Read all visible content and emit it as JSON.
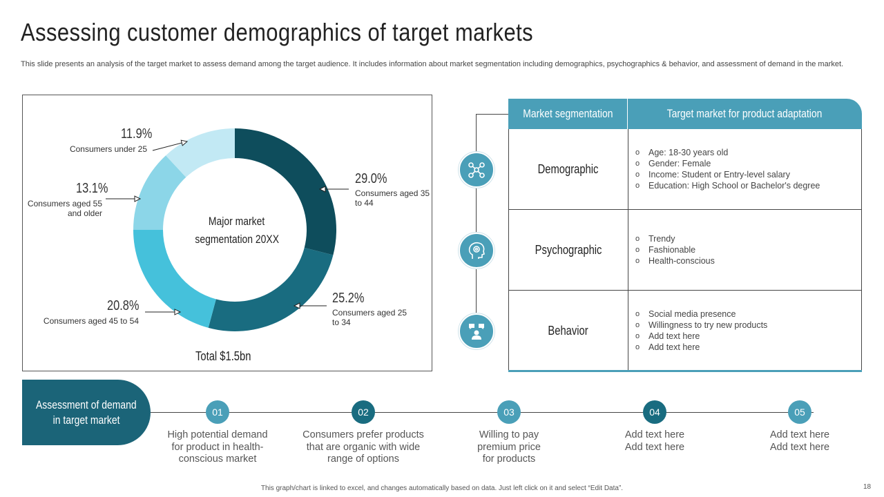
{
  "title": "Assessing customer demographics of target markets",
  "subtitle": "This slide presents an analysis of the target market to assess demand among the target audience. It includes information about market segmentation including demographics, psychographics & behavior, and assessment of demand in the market.",
  "chart_data": {
    "type": "pie",
    "variant": "donut",
    "title": "Major market segmentation 20XX",
    "center_label_line1": "Major market",
    "center_label_line2": "segmentation  20XX",
    "total_label": "Total   $1.5bn",
    "slices": [
      {
        "label": "Consumers aged 35 to 44",
        "label_line1": "Consumers aged 35",
        "label_line2": "to 44",
        "value": 29.0,
        "display": "29.0%",
        "color": "#0e4d5c"
      },
      {
        "label": "Consumers aged 25 to 34",
        "label_line1": "Consumers aged 25",
        "label_line2": "to 34",
        "value": 25.2,
        "display": "25.2%",
        "color": "#196c80"
      },
      {
        "label": "Consumers aged 45 to 54",
        "label_line1": "Consumers aged 45 to 54",
        "label_line2": "",
        "value": 20.8,
        "display": "20.8%",
        "color": "#45c1db"
      },
      {
        "label": "Consumers aged 55 and older",
        "label_line1": "Consumers aged 55",
        "label_line2": "and older",
        "value": 13.1,
        "display": "13.1%",
        "color": "#8cd6e8"
      },
      {
        "label": "Consumers under 25",
        "label_line1": "Consumers under 25",
        "label_line2": "",
        "value": 11.9,
        "display": "11.9%",
        "color": "#c2e9f4"
      }
    ]
  },
  "table": {
    "header_col1": "Market segmentation",
    "header_col2": "Target market for product adaptation",
    "rows": [
      {
        "name": "Demographic",
        "icon": "network-nodes-icon",
        "items": [
          "Age: 18-30 years old",
          "Gender: Female",
          "Income: Student or Entry-level  salary",
          "Education: High School or Bachelor's degree"
        ]
      },
      {
        "name": "Psychographic",
        "icon": "head-gears-icon",
        "items": [
          "Trendy",
          "Fashionable",
          "Health-conscious"
        ]
      },
      {
        "name": "Behavior",
        "icon": "person-chat-icon",
        "items": [
          "Social media presence",
          "Willingness to try new products",
          "Add text here",
          "Add text here"
        ]
      }
    ],
    "bullet_glyph": "o"
  },
  "assessment": {
    "label_line1": "Assessment of demand",
    "label_line2": "in target market",
    "steps": [
      {
        "num": "01",
        "color": "#4a9fb8",
        "lines": [
          "High potential demand",
          "for product in health-",
          "conscious market"
        ]
      },
      {
        "num": "02",
        "color": "#196c80",
        "lines": [
          "Consumers prefer products",
          "that are organic with wide",
          "range of options"
        ]
      },
      {
        "num": "03",
        "color": "#4a9fb8",
        "lines": [
          "Willing to pay",
          "premium price",
          "for products"
        ]
      },
      {
        "num": "04",
        "color": "#196c80",
        "lines": [
          "Add text here",
          "Add text here",
          ""
        ]
      },
      {
        "num": "05",
        "color": "#4a9fb8",
        "lines": [
          "Add text here",
          "Add text here",
          ""
        ]
      }
    ]
  },
  "footer": "This graph/chart is linked to excel, and changes automatically based on data. Just left click on it and select “Edit Data”.",
  "page_number": "18",
  "colors": {
    "accent": "#4a9fb8",
    "dark": "#1b6478"
  }
}
